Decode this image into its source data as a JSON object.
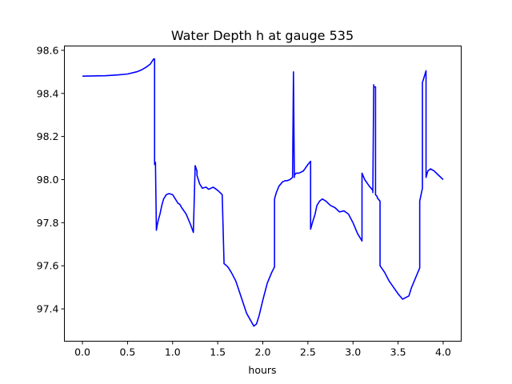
{
  "chart_data": {
    "type": "line",
    "title": "Water Depth h at gauge 535",
    "xlabel": "hours",
    "ylabel": "",
    "xlim": [
      -0.2,
      4.2
    ],
    "ylim": [
      97.25,
      98.62
    ],
    "xticks": [
      0.0,
      0.5,
      1.0,
      1.5,
      2.0,
      2.5,
      3.0,
      3.5,
      4.0
    ],
    "xtick_labels": [
      "0.0",
      "0.5",
      "1.0",
      "1.5",
      "2.0",
      "2.5",
      "3.0",
      "3.5",
      "4.0"
    ],
    "yticks": [
      97.4,
      97.6,
      97.8,
      98.0,
      98.2,
      98.4,
      98.6
    ],
    "ytick_labels": [
      "97.4",
      "97.6",
      "97.8",
      "98.0",
      "98.2",
      "98.4",
      "98.6"
    ],
    "grid": false,
    "legend": "none",
    "series": [
      {
        "color": "#0000ff",
        "x": [
          0.0,
          0.25,
          0.4,
          0.5,
          0.6,
          0.65,
          0.7,
          0.75,
          0.79,
          0.8,
          0.8,
          0.81,
          0.81,
          0.82,
          0.83,
          0.84,
          0.86,
          0.88,
          0.9,
          0.93,
          0.96,
          1.0,
          1.03,
          1.06,
          1.08,
          1.1,
          1.15,
          1.2,
          1.23,
          1.25,
          1.27,
          1.27,
          1.3,
          1.33,
          1.37,
          1.4,
          1.45,
          1.5,
          1.55,
          1.57,
          1.57,
          1.6,
          1.62,
          1.65,
          1.7,
          1.74,
          1.78,
          1.82,
          1.86,
          1.9,
          1.93,
          1.96,
          2.0,
          2.05,
          2.1,
          2.13,
          2.13,
          2.15,
          2.18,
          2.22,
          2.25,
          2.27,
          2.3,
          2.33,
          2.34,
          2.34,
          2.35,
          2.35,
          2.37,
          2.4,
          2.45,
          2.5,
          2.53,
          2.53,
          2.55,
          2.58,
          2.6,
          2.63,
          2.66,
          2.7,
          2.75,
          2.8,
          2.85,
          2.9,
          2.95,
          3.0,
          3.05,
          3.1,
          3.1,
          3.13,
          3.18,
          3.22,
          3.22,
          3.23,
          3.23,
          3.25,
          3.25,
          3.27,
          3.27,
          3.3,
          3.3,
          3.35,
          3.4,
          3.45,
          3.5,
          3.55,
          3.62,
          3.65,
          3.7,
          3.74,
          3.74,
          3.77,
          3.77,
          3.81,
          3.81,
          3.83,
          3.86,
          3.9,
          3.95,
          4.0
        ],
        "y": [
          98.48,
          98.482,
          98.486,
          98.49,
          98.5,
          98.508,
          98.52,
          98.535,
          98.56,
          98.56,
          98.07,
          98.08,
          98.07,
          97.765,
          97.79,
          97.81,
          97.84,
          97.88,
          97.91,
          97.93,
          97.935,
          97.93,
          97.91,
          97.89,
          97.885,
          97.87,
          97.84,
          97.79,
          97.755,
          98.065,
          98.04,
          98.02,
          97.98,
          97.96,
          97.965,
          97.955,
          97.965,
          97.95,
          97.93,
          97.615,
          97.61,
          97.6,
          97.59,
          97.57,
          97.53,
          97.48,
          97.43,
          97.38,
          97.35,
          97.32,
          97.33,
          97.37,
          97.44,
          97.52,
          97.57,
          97.595,
          97.91,
          97.94,
          97.97,
          97.99,
          97.995,
          97.995,
          98.0,
          98.01,
          98.5,
          98.5,
          98.01,
          98.02,
          98.03,
          98.03,
          98.04,
          98.07,
          98.085,
          97.77,
          97.8,
          97.84,
          97.88,
          97.9,
          97.91,
          97.9,
          97.88,
          97.87,
          97.85,
          97.855,
          97.84,
          97.8,
          97.75,
          97.715,
          98.03,
          98.0,
          97.97,
          97.95,
          97.94,
          98.44,
          98.43,
          98.43,
          97.93,
          97.92,
          97.915,
          97.9,
          97.6,
          97.57,
          97.53,
          97.5,
          97.47,
          97.445,
          97.46,
          97.5,
          97.55,
          97.59,
          97.9,
          97.96,
          98.45,
          98.505,
          98.01,
          98.04,
          98.05,
          98.04,
          98.02,
          98.0
        ]
      }
    ]
  }
}
